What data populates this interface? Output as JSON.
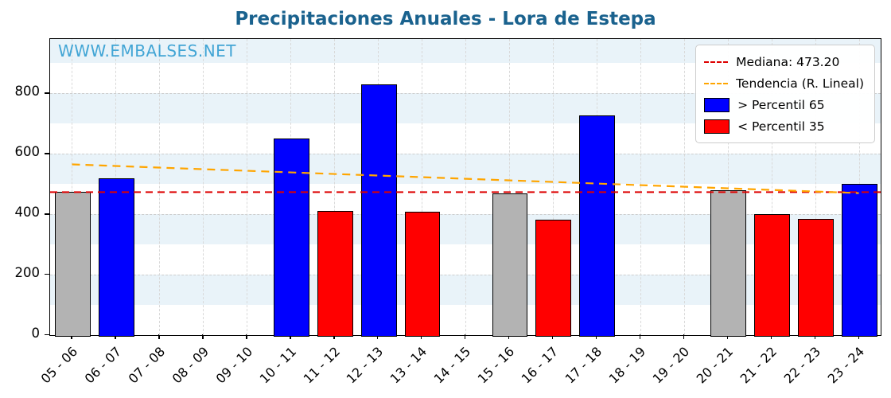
{
  "title": "Precipitaciones Anuales - Lora de Estepa",
  "watermark": "WWW.EMBALSES.NET",
  "colors": {
    "title": "#1a628e",
    "watermark": "#42a5d5",
    "blue_bar": "#0000ff",
    "red_bar": "#ff0000",
    "gray_bar": "#b3b3b3",
    "median_line": "#dd0000",
    "trend_line": "#ffa500",
    "stripe": "#e9f3f9"
  },
  "legend": [
    {
      "label": "Mediana: 473.20",
      "type": "dashed-line",
      "color": "#dd0000"
    },
    {
      "label": "Tendencia (R. Lineal)",
      "type": "dashed-line",
      "color": "#ffa500"
    },
    {
      "label": "> Percentil 65",
      "type": "box",
      "color": "#0000ff"
    },
    {
      "label": "< Percentil 35",
      "type": "box",
      "color": "#ff0000"
    }
  ],
  "chart_data": {
    "type": "bar",
    "title": "Precipitaciones Anuales - Lora de Estepa",
    "xlabel": "",
    "ylabel": "",
    "categories": [
      "05 - 06",
      "06 - 07",
      "07 - 08",
      "08 - 09",
      "09 - 10",
      "10 - 11",
      "11 - 12",
      "12 - 13",
      "13 - 14",
      "14 - 15",
      "15 - 16",
      "16 - 17",
      "17 - 18",
      "18 - 19",
      "19 - 20",
      "20 - 21",
      "21 - 22",
      "22 - 23",
      "23 - 24"
    ],
    "values": [
      475,
      520,
      0,
      0,
      0,
      650,
      410,
      830,
      408,
      0,
      470,
      382,
      728,
      0,
      0,
      480,
      400,
      385,
      500
    ],
    "bar_colors": [
      "gray",
      "blue",
      null,
      null,
      null,
      "blue",
      "red",
      "blue",
      "red",
      null,
      "gray",
      "red",
      "blue",
      null,
      null,
      "gray",
      "red",
      "red",
      "blue"
    ],
    "median": 473.2,
    "trend": {
      "start": 565,
      "end": 470
    },
    "ylim": [
      0,
      980
    ],
    "yticks": [
      0,
      200,
      400,
      600,
      800
    ],
    "grid": true,
    "legend_position": "upper right"
  }
}
